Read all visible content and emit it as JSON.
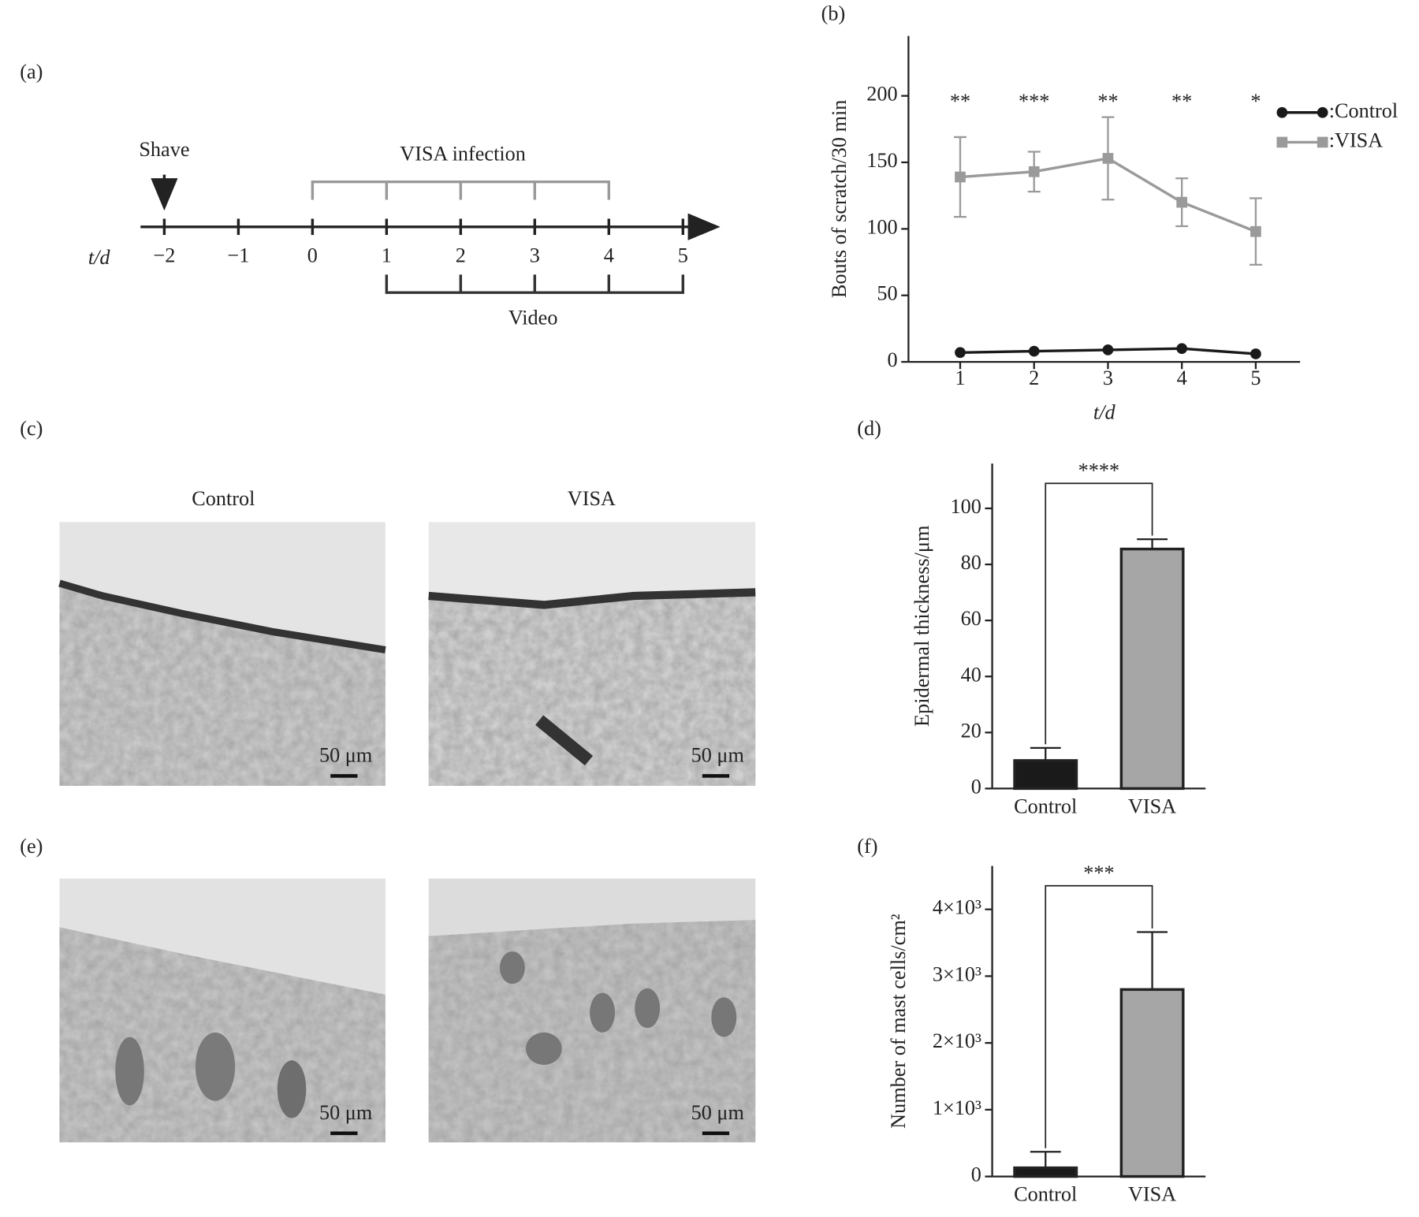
{
  "panel_labels": [
    "(a)",
    "(b)",
    "(c)",
    "(d)",
    "(e)",
    "(f)"
  ],
  "timeline": {
    "ticks": [
      {
        "value": -2,
        "label": "−2"
      },
      {
        "value": -1,
        "label": "−1"
      },
      0,
      1,
      2,
      3,
      4,
      5
    ],
    "axis_label": "t/d",
    "shave_label": "Shave",
    "shave_day": -2,
    "infection_label": "VISA infection",
    "infection_days": [
      0,
      1,
      2,
      3,
      4
    ],
    "video_label": "Video",
    "video_days": [
      1,
      2,
      3,
      4,
      5
    ]
  },
  "chart_data": [
    {
      "type": "line",
      "ylabel": "Bouts of scratch/30 min",
      "xlabel": "t/d",
      "x": [
        1,
        2,
        3,
        4,
        5
      ],
      "xlim": [
        0.3,
        5.6
      ],
      "xticks": [
        1,
        2,
        3,
        4,
        5
      ],
      "ylim": [
        0,
        245
      ],
      "yticks": [
        0,
        50,
        100,
        150,
        200
      ],
      "legend": "top-right",
      "series": [
        {
          "name": ":Control",
          "color": "#1a1a1a",
          "marker": "circle",
          "values": [
            7,
            8,
            9,
            10,
            6
          ]
        },
        {
          "name": ":VISA",
          "color": "#9a9a9a",
          "marker": "square",
          "values": [
            139,
            143,
            153,
            120,
            98
          ],
          "errors": [
            30,
            15,
            31,
            18,
            25
          ]
        }
      ],
      "annotations": [
        "**",
        "***",
        "**",
        "**",
        "*"
      ]
    },
    {
      "type": "bar",
      "ylabel": "Epidermal thickness/μm",
      "categories": [
        "Control",
        "VISA"
      ],
      "values": [
        10,
        85.5
      ],
      "errors": [
        4.5,
        3.5
      ],
      "colors": [
        "#1a1a1a",
        "#a6a6a6"
      ],
      "ylim": [
        0,
        116
      ],
      "yticks": [
        0,
        20,
        40,
        60,
        80,
        100
      ],
      "significance": "****"
    },
    {
      "type": "bar",
      "ylabel": "Number of mast cells/cm²",
      "categories": [
        "Control",
        "VISA"
      ],
      "values": [
        130,
        2800
      ],
      "errors": [
        240,
        860
      ],
      "colors": [
        "#1a1a1a",
        "#a6a6a6"
      ],
      "ylim": [
        0,
        4650
      ],
      "yticks": [
        0,
        {
          "value": 1000,
          "label": "1×10³"
        },
        {
          "value": 2000,
          "label": "2×10³"
        },
        {
          "value": 3000,
          "label": "3×10³"
        },
        {
          "value": 4000,
          "label": "4×10³"
        }
      ],
      "significance": "***"
    }
  ],
  "micrographs": {
    "columns": [
      "Control",
      "VISA"
    ],
    "scale_bar": "50 μm"
  }
}
